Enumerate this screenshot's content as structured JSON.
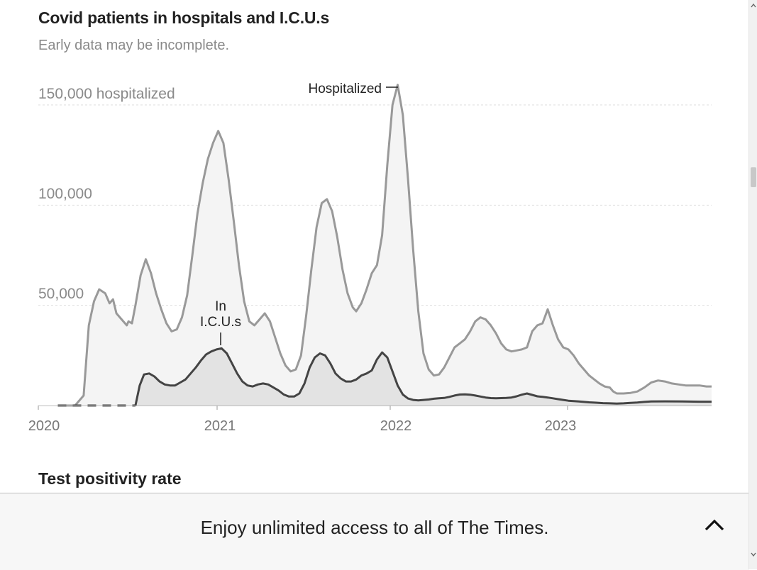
{
  "chart": {
    "title": "Covid patients in hospitals and I.C.U.s",
    "subtitle": "Early data may be incomplete.",
    "y_tick_labels": [
      "150,000 hospitalized",
      "100,000",
      "50,000"
    ],
    "x_tick_labels": [
      "2020",
      "2021",
      "2022",
      "2023"
    ],
    "annotation_hospitalized": "Hospitalized",
    "annotation_icu_line1": "In",
    "annotation_icu_line2": "I.C.U.s"
  },
  "next_section": {
    "title": "Test positivity rate"
  },
  "banner": {
    "text": "Enjoy unlimited access to all of The Times.",
    "toggle_icon": "chevron-up-icon"
  },
  "colors": {
    "hospitalized_line": "#999999",
    "hospitalized_fill": "#f4f4f4",
    "icu_line": "#444444",
    "icu_fill": "#e3e3e3",
    "grid": "#dddddd"
  },
  "chart_data": {
    "type": "area",
    "title": "Covid patients in hospitals and I.C.U.s",
    "subtitle": "Early data may be incomplete.",
    "xlabel": "",
    "ylabel": "",
    "x_unit": "year",
    "xlim": [
      2020.0,
      2023.87
    ],
    "ylim": [
      0,
      160000
    ],
    "y_ticks": [
      50000,
      100000,
      150000
    ],
    "x_ticks": [
      2020,
      2021,
      2022,
      2023
    ],
    "grid": true,
    "series": [
      {
        "name": "Hospitalized",
        "points": [
          [
            2020.08,
            0
          ],
          [
            2020.18,
            0
          ],
          [
            2020.23,
            5000
          ],
          [
            2020.26,
            40000
          ],
          [
            2020.29,
            52000
          ],
          [
            2020.32,
            58000
          ],
          [
            2020.355,
            56000
          ],
          [
            2020.38,
            51000
          ],
          [
            2020.4,
            53000
          ],
          [
            2020.42,
            46000
          ],
          [
            2020.45,
            43000
          ],
          [
            2020.48,
            40000
          ],
          [
            2020.49,
            42000
          ],
          [
            2020.51,
            41000
          ],
          [
            2020.53,
            50000
          ],
          [
            2020.56,
            65000
          ],
          [
            2020.59,
            73000
          ],
          [
            2020.62,
            66000
          ],
          [
            2020.65,
            56000
          ],
          [
            2020.68,
            48000
          ],
          [
            2020.71,
            41000
          ],
          [
            2020.74,
            37000
          ],
          [
            2020.77,
            38000
          ],
          [
            2020.8,
            44000
          ],
          [
            2020.83,
            55000
          ],
          [
            2020.86,
            75000
          ],
          [
            2020.89,
            96000
          ],
          [
            2020.92,
            111000
          ],
          [
            2020.95,
            123000
          ],
          [
            2020.98,
            131000
          ],
          [
            2021.01,
            137000
          ],
          [
            2021.04,
            131000
          ],
          [
            2021.07,
            113000
          ],
          [
            2021.1,
            92000
          ],
          [
            2021.13,
            70000
          ],
          [
            2021.16,
            52000
          ],
          [
            2021.19,
            42000
          ],
          [
            2021.22,
            40000
          ],
          [
            2021.25,
            43000
          ],
          [
            2021.28,
            46000
          ],
          [
            2021.31,
            42000
          ],
          [
            2021.34,
            34000
          ],
          [
            2021.37,
            26000
          ],
          [
            2021.4,
            20000
          ],
          [
            2021.43,
            17000
          ],
          [
            2021.46,
            18000
          ],
          [
            2021.49,
            25000
          ],
          [
            2021.52,
            45000
          ],
          [
            2021.55,
            68000
          ],
          [
            2021.58,
            89000
          ],
          [
            2021.61,
            101000
          ],
          [
            2021.64,
            103000
          ],
          [
            2021.67,
            97000
          ],
          [
            2021.7,
            84000
          ],
          [
            2021.73,
            68000
          ],
          [
            2021.76,
            56000
          ],
          [
            2021.79,
            49000
          ],
          [
            2021.81,
            47000
          ],
          [
            2021.84,
            51000
          ],
          [
            2021.87,
            58000
          ],
          [
            2021.9,
            66000
          ],
          [
            2021.93,
            70000
          ],
          [
            2021.96,
            85000
          ],
          [
            2021.99,
            120000
          ],
          [
            2022.02,
            150000
          ],
          [
            2022.05,
            160000
          ],
          [
            2022.08,
            145000
          ],
          [
            2022.11,
            113000
          ],
          [
            2022.14,
            78000
          ],
          [
            2022.17,
            47000
          ],
          [
            2022.2,
            26000
          ],
          [
            2022.23,
            18000
          ],
          [
            2022.26,
            15000
          ],
          [
            2022.29,
            15500
          ],
          [
            2022.32,
            19000
          ],
          [
            2022.35,
            24000
          ],
          [
            2022.38,
            29000
          ],
          [
            2022.41,
            31000
          ],
          [
            2022.44,
            33000
          ],
          [
            2022.47,
            37000
          ],
          [
            2022.5,
            42000
          ],
          [
            2022.53,
            44000
          ],
          [
            2022.56,
            43000
          ],
          [
            2022.59,
            40000
          ],
          [
            2022.62,
            36000
          ],
          [
            2022.65,
            31000
          ],
          [
            2022.68,
            28000
          ],
          [
            2022.71,
            27000
          ],
          [
            2022.74,
            27500
          ],
          [
            2022.77,
            28000
          ],
          [
            2022.8,
            29000
          ],
          [
            2022.83,
            37000
          ],
          [
            2022.86,
            40000
          ],
          [
            2022.89,
            41000
          ],
          [
            2022.92,
            48000
          ],
          [
            2022.95,
            40000
          ],
          [
            2022.98,
            33000
          ],
          [
            2023.01,
            29000
          ],
          [
            2023.04,
            28000
          ],
          [
            2023.07,
            25000
          ],
          [
            2023.1,
            21000
          ],
          [
            2023.13,
            18000
          ],
          [
            2023.16,
            15000
          ],
          [
            2023.19,
            13000
          ],
          [
            2023.22,
            11000
          ],
          [
            2023.25,
            9500
          ],
          [
            2023.28,
            9000
          ],
          [
            2023.3,
            7000
          ],
          [
            2023.32,
            6000
          ],
          [
            2023.36,
            6000
          ],
          [
            2023.4,
            6300
          ],
          [
            2023.44,
            7000
          ],
          [
            2023.48,
            9000
          ],
          [
            2023.52,
            11500
          ],
          [
            2023.56,
            12500
          ],
          [
            2023.6,
            12000
          ],
          [
            2023.64,
            11000
          ],
          [
            2023.68,
            10500
          ],
          [
            2023.72,
            10000
          ],
          [
            2023.76,
            10000
          ],
          [
            2023.8,
            10000
          ],
          [
            2023.84,
            9500
          ],
          [
            2023.87,
            9500
          ]
        ]
      },
      {
        "name": "In I.C.U.s",
        "gap_dashed": [
          [
            2020.08,
            0
          ],
          [
            2020.53,
            0
          ]
        ],
        "points": [
          [
            2020.53,
            0
          ],
          [
            2020.555,
            10000
          ],
          [
            2020.58,
            15500
          ],
          [
            2020.61,
            16000
          ],
          [
            2020.64,
            14500
          ],
          [
            2020.67,
            12000
          ],
          [
            2020.7,
            10500
          ],
          [
            2020.73,
            10000
          ],
          [
            2020.76,
            10000
          ],
          [
            2020.79,
            11500
          ],
          [
            2020.82,
            13000
          ],
          [
            2020.85,
            16000
          ],
          [
            2020.88,
            19000
          ],
          [
            2020.91,
            22500
          ],
          [
            2020.94,
            25500
          ],
          [
            2020.97,
            27000
          ],
          [
            2021.0,
            28000
          ],
          [
            2021.03,
            28500
          ],
          [
            2021.06,
            26000
          ],
          [
            2021.09,
            21000
          ],
          [
            2021.12,
            16000
          ],
          [
            2021.15,
            12000
          ],
          [
            2021.18,
            10000
          ],
          [
            2021.21,
            9500
          ],
          [
            2021.24,
            10500
          ],
          [
            2021.27,
            11000
          ],
          [
            2021.3,
            10500
          ],
          [
            2021.33,
            9000
          ],
          [
            2021.36,
            7500
          ],
          [
            2021.39,
            5500
          ],
          [
            2021.42,
            4500
          ],
          [
            2021.45,
            4500
          ],
          [
            2021.48,
            6000
          ],
          [
            2021.51,
            11000
          ],
          [
            2021.54,
            19000
          ],
          [
            2021.57,
            24000
          ],
          [
            2021.6,
            26000
          ],
          [
            2021.63,
            25000
          ],
          [
            2021.66,
            21000
          ],
          [
            2021.69,
            16000
          ],
          [
            2021.72,
            13500
          ],
          [
            2021.75,
            12000
          ],
          [
            2021.78,
            12000
          ],
          [
            2021.81,
            13000
          ],
          [
            2021.84,
            15000
          ],
          [
            2021.87,
            16000
          ],
          [
            2021.9,
            17500
          ],
          [
            2021.93,
            23000
          ],
          [
            2021.96,
            26500
          ],
          [
            2021.99,
            24000
          ],
          [
            2022.02,
            17000
          ],
          [
            2022.05,
            10000
          ],
          [
            2022.08,
            5500
          ],
          [
            2022.11,
            3500
          ],
          [
            2022.14,
            2800
          ],
          [
            2022.17,
            2600
          ],
          [
            2022.2,
            2800
          ],
          [
            2022.23,
            3000
          ],
          [
            2022.26,
            3400
          ],
          [
            2022.29,
            3600
          ],
          [
            2022.32,
            3800
          ],
          [
            2022.35,
            4300
          ],
          [
            2022.38,
            5000
          ],
          [
            2022.41,
            5500
          ],
          [
            2022.44,
            5600
          ],
          [
            2022.47,
            5400
          ],
          [
            2022.5,
            5000
          ],
          [
            2022.53,
            4500
          ],
          [
            2022.56,
            4000
          ],
          [
            2022.59,
            3700
          ],
          [
            2022.62,
            3600
          ],
          [
            2022.65,
            3700
          ],
          [
            2022.68,
            3800
          ],
          [
            2022.71,
            4000
          ],
          [
            2022.74,
            4600
          ],
          [
            2022.77,
            5400
          ],
          [
            2022.8,
            6000
          ],
          [
            2022.83,
            5300
          ],
          [
            2022.86,
            4600
          ],
          [
            2022.89,
            4300
          ],
          [
            2022.92,
            4000
          ],
          [
            2022.95,
            3600
          ],
          [
            2022.98,
            3200
          ],
          [
            2023.01,
            2800
          ],
          [
            2023.04,
            2400
          ],
          [
            2023.07,
            2200
          ],
          [
            2023.1,
            2000
          ],
          [
            2023.13,
            1800
          ],
          [
            2023.16,
            1600
          ],
          [
            2023.2,
            1400
          ],
          [
            2023.24,
            1200
          ],
          [
            2023.28,
            1100
          ],
          [
            2023.32,
            1000
          ],
          [
            2023.36,
            1100
          ],
          [
            2023.4,
            1300
          ],
          [
            2023.44,
            1500
          ],
          [
            2023.48,
            1800
          ],
          [
            2023.52,
            2000
          ],
          [
            2023.6,
            2100
          ],
          [
            2023.7,
            2000
          ],
          [
            2023.8,
            1900
          ],
          [
            2023.87,
            1900
          ]
        ]
      }
    ],
    "annotations": [
      "Hospitalized",
      "In I.C.U.s"
    ],
    "legend": "none"
  }
}
